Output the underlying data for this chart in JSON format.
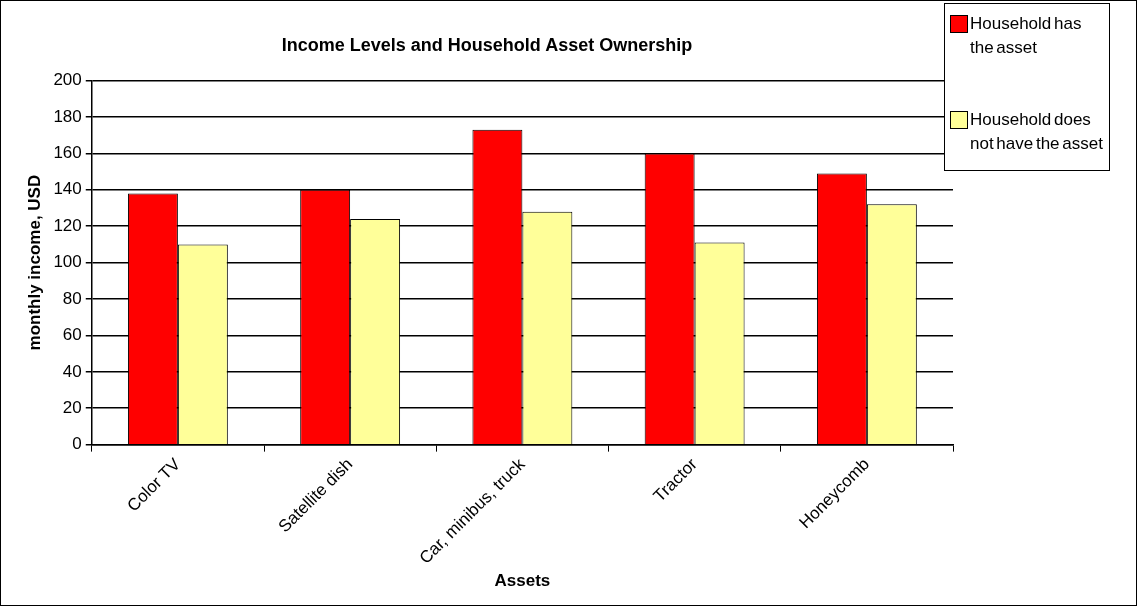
{
  "chart_data": {
    "type": "bar",
    "title": "Income Levels and Household Asset Ownership",
    "xlabel": "Assets",
    "ylabel": "monthly income, USD",
    "categories": [
      "Color TV",
      "Satellite dish",
      "Car, minibus, truck",
      "Tractor",
      "Honeycomb"
    ],
    "series": [
      {
        "name": "Household has the asset",
        "color": "#ff0000",
        "values": [
          138,
          140,
          173,
          160,
          149
        ]
      },
      {
        "name": "Household does not have the asset",
        "color": "#ffff99",
        "values": [
          110,
          124,
          128,
          111,
          132
        ]
      }
    ],
    "ylim": [
      0,
      200
    ],
    "yticks": [
      0,
      20,
      40,
      60,
      80,
      100,
      120,
      140,
      160,
      180,
      200
    ],
    "grid": "y",
    "legend": "top right"
  }
}
